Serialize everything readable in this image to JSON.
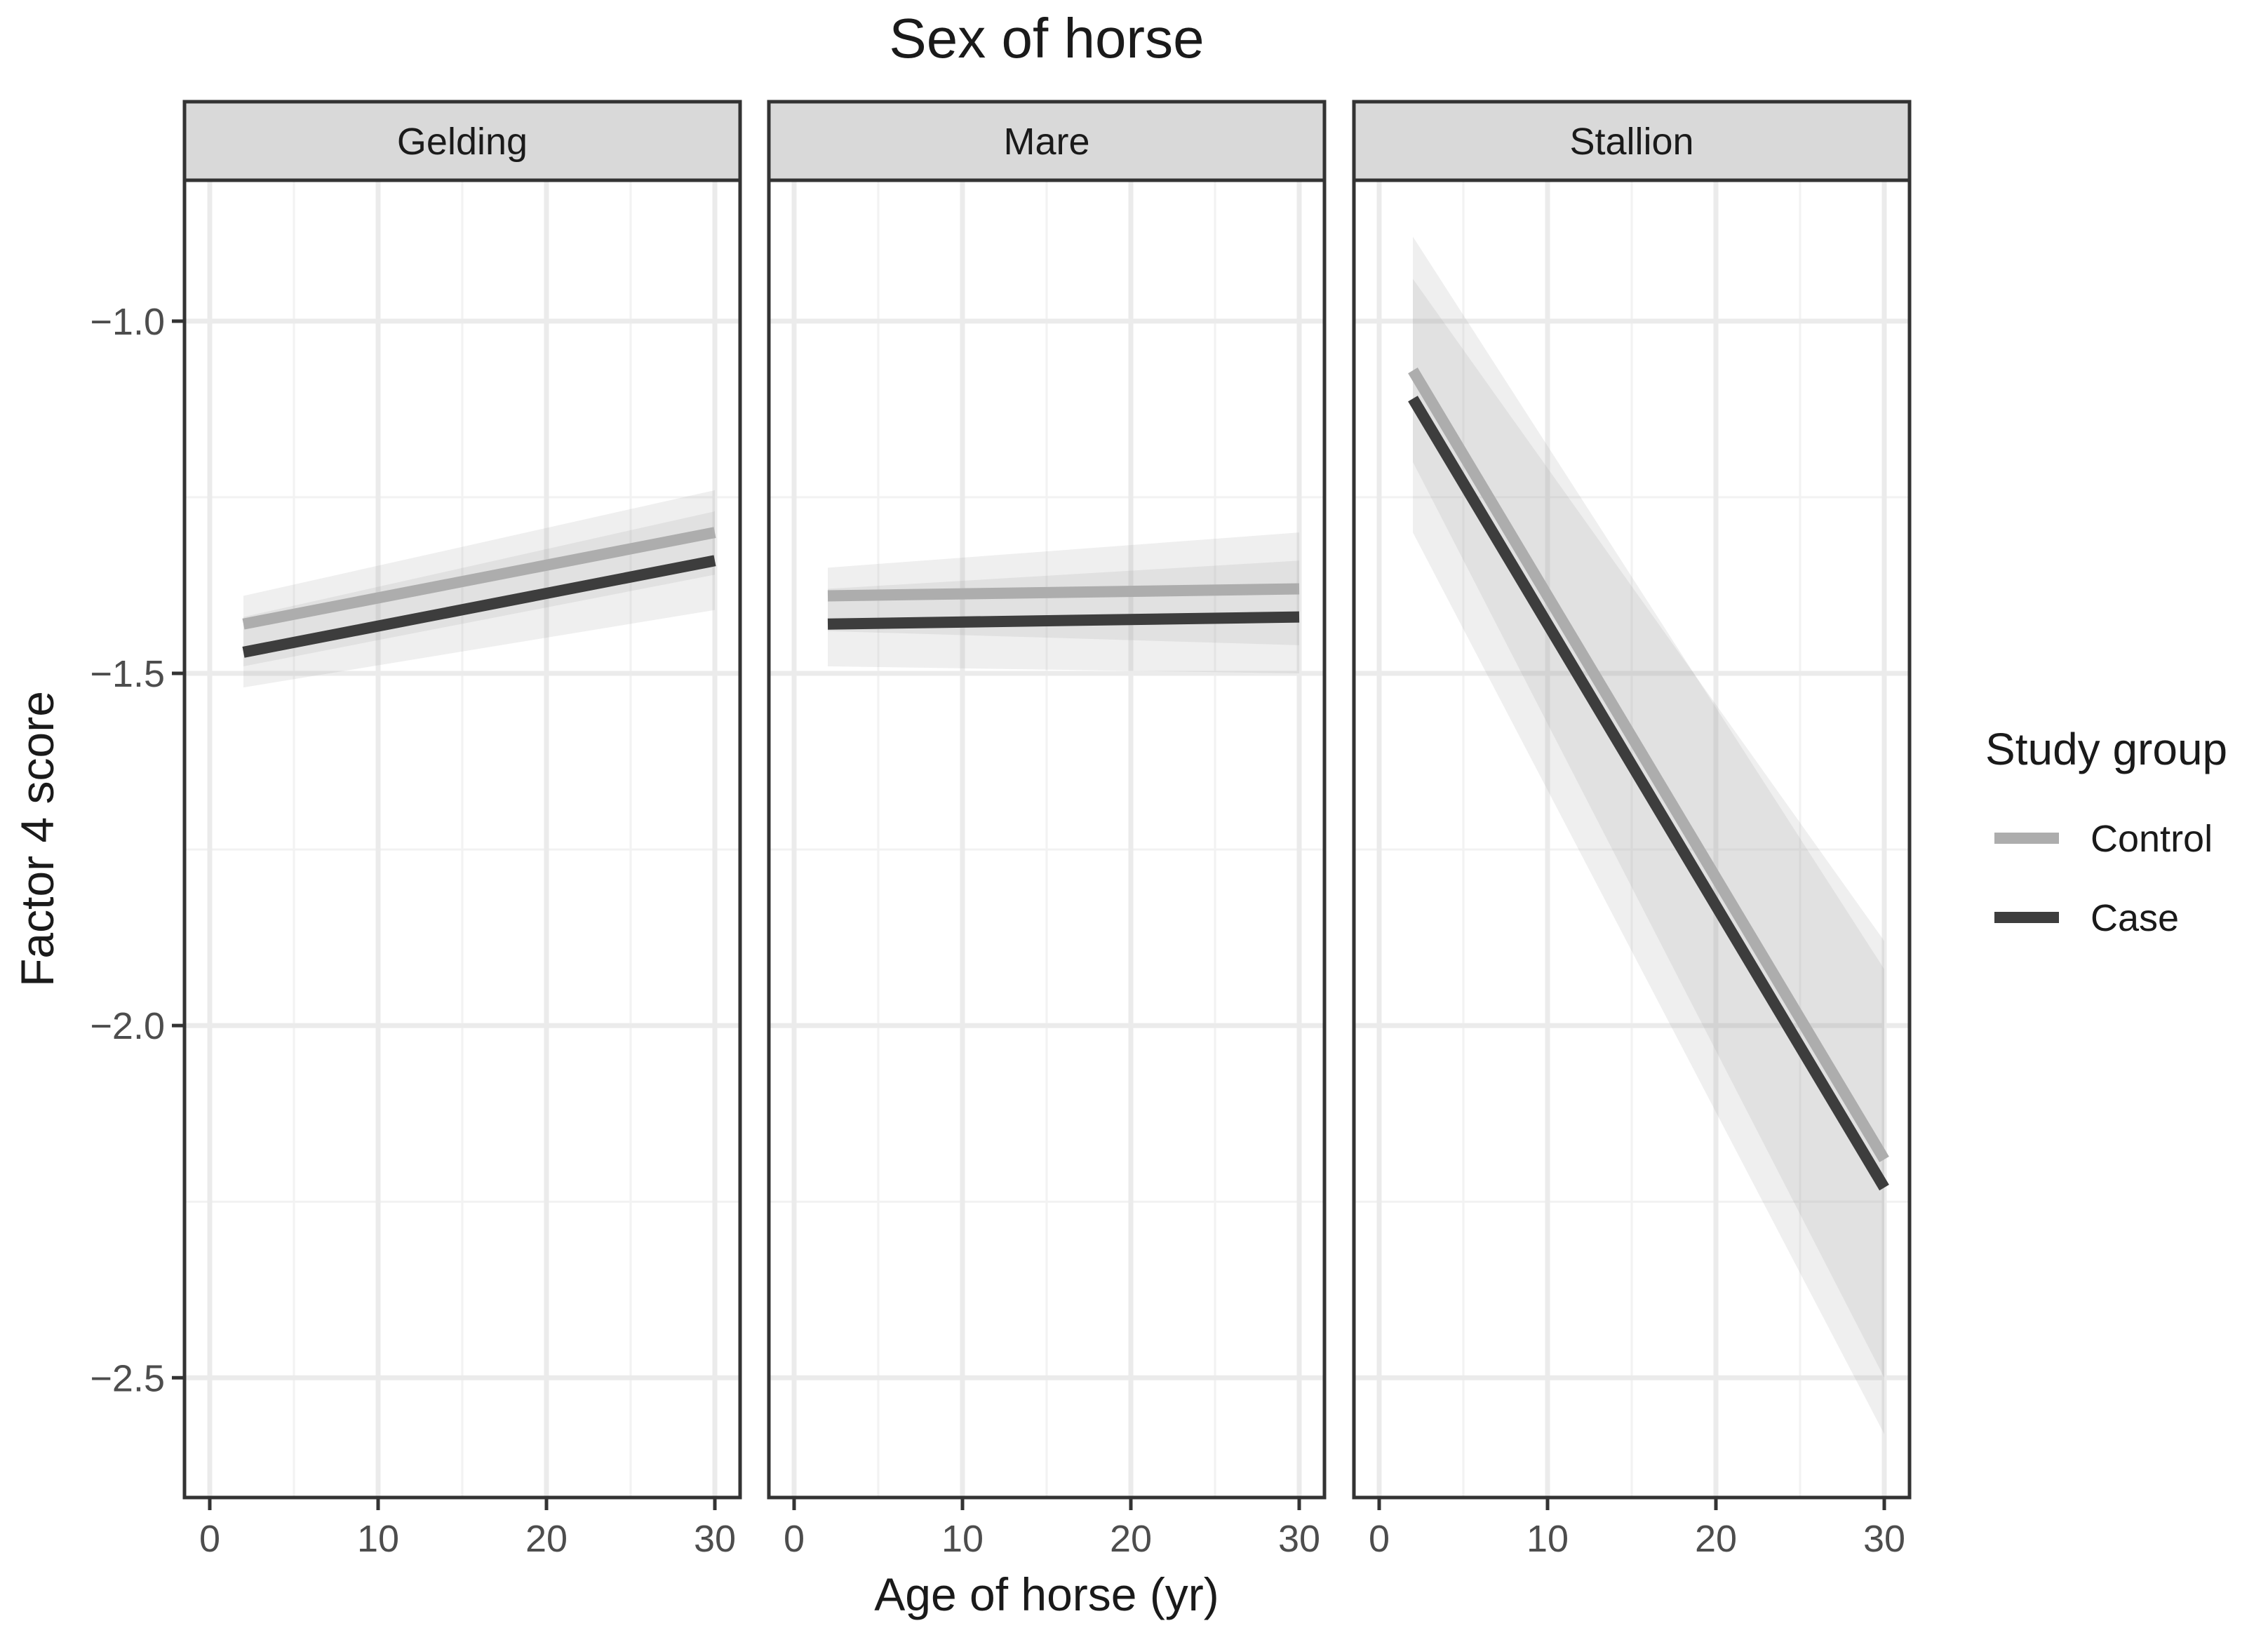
{
  "chart_data": {
    "type": "line",
    "title": "Sex of horse",
    "xlabel": "Age of horse (yr)",
    "ylabel": "Factor 4 score",
    "xlim": [
      -1.5,
      31.5
    ],
    "ylim": [
      -2.67,
      -0.8
    ],
    "x_ticks": [
      0,
      10,
      20,
      30
    ],
    "x_tick_labels": [
      "0",
      "10",
      "20",
      "30"
    ],
    "y_ticks": [
      -1.0,
      -1.5,
      -2.0,
      -2.5
    ],
    "y_tick_labels": [
      "−1.0",
      "−1.5",
      "−2.0",
      "−2.5"
    ],
    "grid": true,
    "legend": {
      "title": "Study group",
      "position": "right",
      "entries": [
        {
          "label": "Control",
          "color": "#adadad"
        },
        {
          "label": "Case",
          "color": "#3d3d3d"
        }
      ]
    },
    "panels": [
      {
        "label": "Gelding",
        "series": [
          {
            "name": "Control",
            "x": [
              2,
              30
            ],
            "y": [
              -1.43,
              -1.3
            ],
            "ci_low": [
              -1.49,
              -1.36
            ],
            "ci_high": [
              -1.39,
              -1.24
            ]
          },
          {
            "name": "Case",
            "x": [
              2,
              30
            ],
            "y": [
              -1.47,
              -1.34
            ],
            "ci_low": [
              -1.52,
              -1.41
            ],
            "ci_high": [
              -1.42,
              -1.27
            ]
          }
        ]
      },
      {
        "label": "Mare",
        "series": [
          {
            "name": "Control",
            "x": [
              2,
              30
            ],
            "y": [
              -1.39,
              -1.38
            ],
            "ci_low": [
              -1.44,
              -1.46
            ],
            "ci_high": [
              -1.35,
              -1.3
            ]
          },
          {
            "name": "Case",
            "x": [
              2,
              30
            ],
            "y": [
              -1.43,
              -1.42
            ],
            "ci_low": [
              -1.49,
              -1.5
            ],
            "ci_high": [
              -1.38,
              -1.34
            ]
          }
        ]
      },
      {
        "label": "Stallion",
        "series": [
          {
            "name": "Control",
            "x": [
              2,
              30
            ],
            "y": [
              -1.07,
              -2.19
            ],
            "ci_low": [
              -1.2,
              -2.5
            ],
            "ci_high": [
              -0.94,
              -1.88
            ]
          },
          {
            "name": "Case",
            "x": [
              2,
              30
            ],
            "y": [
              -1.11,
              -2.23
            ],
            "ci_low": [
              -1.3,
              -2.58
            ],
            "ci_high": [
              -0.88,
              -1.92
            ]
          }
        ]
      }
    ]
  }
}
